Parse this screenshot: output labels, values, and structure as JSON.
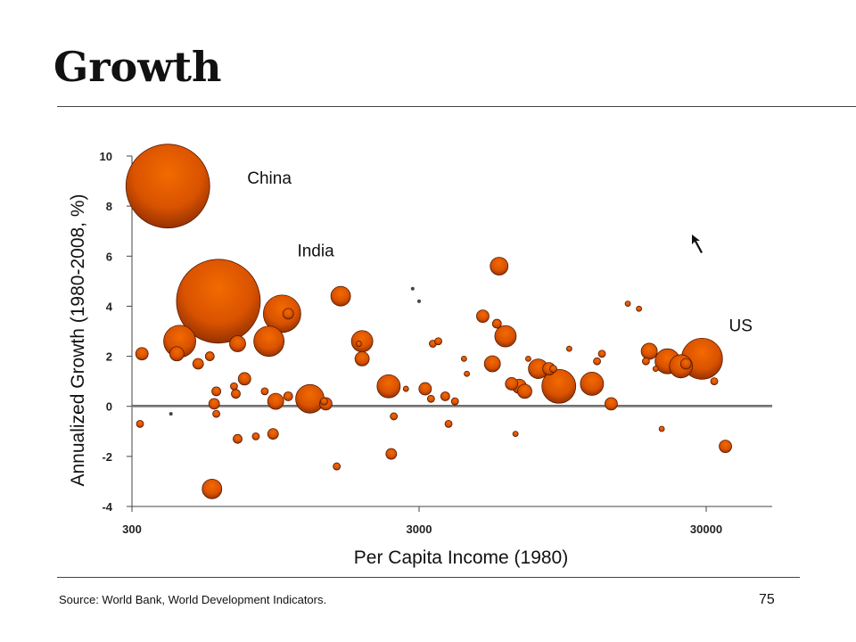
{
  "slide": {
    "title": "Growth",
    "source": "Source:  World Bank, World Development Indicators.",
    "page_number": "75"
  },
  "chart_data": {
    "type": "scatter",
    "title": "",
    "xlabel": "Per Capita Income (1980)",
    "ylabel": "Annualized Growth (1980-2008, %)",
    "x_scale": "log",
    "xlim": [
      300,
      50000
    ],
    "ylim": [
      -4,
      10
    ],
    "x_ticks": [
      300,
      3000,
      30000
    ],
    "x_tick_labels": [
      "300",
      "3000",
      "30000"
    ],
    "y_ticks": [
      -4,
      -2,
      0,
      2,
      4,
      6,
      8,
      10
    ],
    "y_tick_labels": [
      "-4",
      "-2",
      "0",
      "2",
      "4",
      "6",
      "8",
      "10"
    ],
    "reference_line_y": 0,
    "marker_color": "#e05a00",
    "marker_dark": "#8a2a00",
    "annotations": [
      {
        "text": "China",
        "x": 756,
        "y": 8.9
      },
      {
        "text": "India",
        "x": 1130,
        "y": 6.0
      },
      {
        "text": "US",
        "x": 36000,
        "y": 3.0
      }
    ],
    "points": [
      {
        "label": "China",
        "x": 400,
        "y": 8.8,
        "size": 47
      },
      {
        "label": "India",
        "x": 600,
        "y": 4.2,
        "size": 47
      },
      {
        "x": 1000,
        "y": 3.7,
        "size": 21
      },
      {
        "x": 900,
        "y": 2.6,
        "size": 17
      },
      {
        "x": 440,
        "y": 2.6,
        "size": 18
      },
      {
        "x": 325,
        "y": 2.1,
        "size": 7
      },
      {
        "x": 430,
        "y": 2.1,
        "size": 8
      },
      {
        "x": 510,
        "y": 1.7,
        "size": 6
      },
      {
        "x": 560,
        "y": 2.0,
        "size": 5
      },
      {
        "x": 700,
        "y": 2.5,
        "size": 9
      },
      {
        "x": 740,
        "y": 1.1,
        "size": 7
      },
      {
        "x": 680,
        "y": 0.8,
        "size": 4
      },
      {
        "x": 590,
        "y": 0.6,
        "size": 5
      },
      {
        "x": 690,
        "y": 0.5,
        "size": 5
      },
      {
        "x": 580,
        "y": 0.1,
        "size": 6
      },
      {
        "x": 590,
        "y": -0.3,
        "size": 4
      },
      {
        "x": 320,
        "y": -0.7,
        "size": 4
      },
      {
        "x": 410,
        "y": -0.3,
        "size": 2
      },
      {
        "x": 570,
        "y": -3.3,
        "size": 11
      },
      {
        "x": 700,
        "y": -1.3,
        "size": 5
      },
      {
        "x": 810,
        "y": -1.2,
        "size": 4
      },
      {
        "x": 930,
        "y": -1.1,
        "size": 6
      },
      {
        "x": 870,
        "y": 0.6,
        "size": 4
      },
      {
        "x": 950,
        "y": 0.2,
        "size": 9
      },
      {
        "x": 1050,
        "y": 0.4,
        "size": 5
      },
      {
        "x": 1250,
        "y": 0.3,
        "size": 16
      },
      {
        "x": 1420,
        "y": 0.1,
        "size": 7
      },
      {
        "x": 1400,
        "y": 0.2,
        "size": 4
      },
      {
        "x": 1050,
        "y": 3.7,
        "size": 6
      },
      {
        "x": 1600,
        "y": 4.4,
        "size": 11
      },
      {
        "x": 1550,
        "y": -2.4,
        "size": 4
      },
      {
        "x": 1900,
        "y": 2.6,
        "size": 12
      },
      {
        "x": 1900,
        "y": 1.9,
        "size": 8
      },
      {
        "x": 1850,
        "y": 2.5,
        "size": 3
      },
      {
        "x": 2350,
        "y": 0.8,
        "size": 13
      },
      {
        "x": 2400,
        "y": -1.9,
        "size": 6
      },
      {
        "x": 2450,
        "y": -0.4,
        "size": 4
      },
      {
        "x": 2700,
        "y": 0.7,
        "size": 3
      },
      {
        "x": 2850,
        "y": 4.7,
        "size": 2
      },
      {
        "x": 3000,
        "y": 4.2,
        "size": 2
      },
      {
        "x": 3150,
        "y": 0.7,
        "size": 7
      },
      {
        "x": 3300,
        "y": 0.3,
        "size": 4
      },
      {
        "x": 3350,
        "y": 2.5,
        "size": 4
      },
      {
        "x": 3500,
        "y": 2.6,
        "size": 4
      },
      {
        "x": 3700,
        "y": 0.4,
        "size": 5
      },
      {
        "x": 3800,
        "y": -0.7,
        "size": 4
      },
      {
        "x": 4000,
        "y": 0.2,
        "size": 4
      },
      {
        "x": 4300,
        "y": 1.9,
        "size": 3
      },
      {
        "x": 4400,
        "y": 1.3,
        "size": 3
      },
      {
        "x": 5000,
        "y": 3.6,
        "size": 7
      },
      {
        "x": 5400,
        "y": 1.7,
        "size": 9
      },
      {
        "x": 5600,
        "y": 3.3,
        "size": 5
      },
      {
        "x": 5700,
        "y": 5.6,
        "size": 10
      },
      {
        "x": 6000,
        "y": 2.8,
        "size": 12
      },
      {
        "x": 6300,
        "y": 0.9,
        "size": 7
      },
      {
        "x": 6500,
        "y": -1.1,
        "size": 3
      },
      {
        "x": 6700,
        "y": 0.8,
        "size": 8
      },
      {
        "x": 7000,
        "y": 0.6,
        "size": 8
      },
      {
        "x": 7200,
        "y": 1.9,
        "size": 3
      },
      {
        "x": 7800,
        "y": 1.5,
        "size": 11
      },
      {
        "x": 8500,
        "y": 1.5,
        "size": 7
      },
      {
        "x": 9200,
        "y": 0.8,
        "size": 19
      },
      {
        "x": 8800,
        "y": 1.5,
        "size": 4
      },
      {
        "x": 10000,
        "y": 2.3,
        "size": 3
      },
      {
        "x": 12000,
        "y": 0.9,
        "size": 13
      },
      {
        "x": 12500,
        "y": 1.8,
        "size": 4
      },
      {
        "x": 14000,
        "y": 0.1,
        "size": 7
      },
      {
        "x": 13000,
        "y": 2.1,
        "size": 4
      },
      {
        "x": 16000,
        "y": 4.1,
        "size": 3
      },
      {
        "x": 17500,
        "y": 3.9,
        "size": 3
      },
      {
        "x": 19000,
        "y": 2.2,
        "size": 9
      },
      {
        "x": 18500,
        "y": 1.8,
        "size": 4
      },
      {
        "x": 22000,
        "y": 1.8,
        "size": 14
      },
      {
        "x": 24500,
        "y": 1.6,
        "size": 13
      },
      {
        "x": 25500,
        "y": 1.7,
        "size": 6
      },
      {
        "x": 20000,
        "y": 1.5,
        "size": 3
      },
      {
        "x": 21000,
        "y": -0.9,
        "size": 3
      },
      {
        "x": 29000,
        "y": 1.9,
        "size": 23
      },
      {
        "x": 32000,
        "y": 1.0,
        "size": 4
      },
      {
        "x": 35000,
        "y": -1.6,
        "size": 7
      }
    ]
  }
}
